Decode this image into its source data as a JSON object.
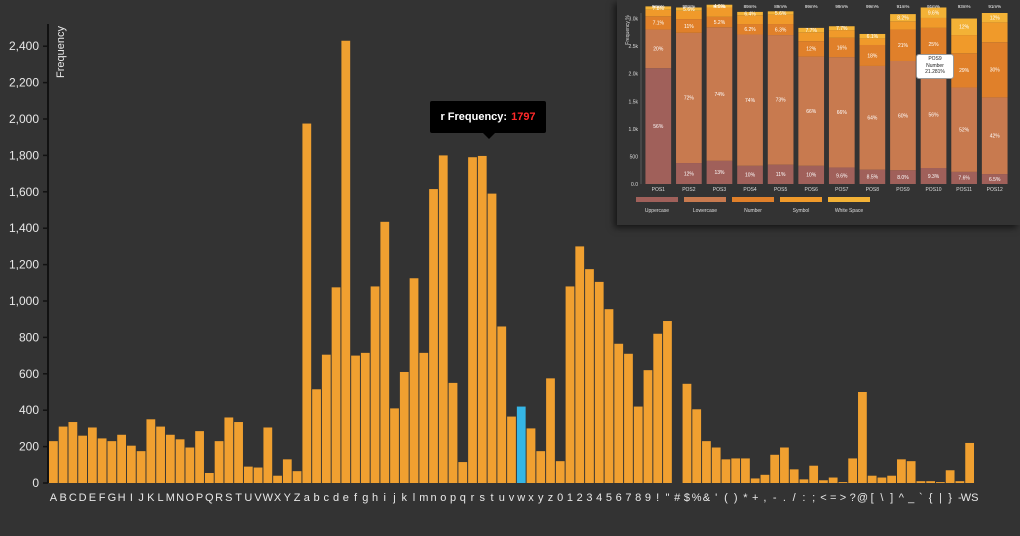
{
  "chart_data": [
    {
      "type": "bar",
      "ylabel": "Frequency",
      "ylim": [
        0,
        2500
      ],
      "yticks": [
        0,
        200,
        400,
        600,
        800,
        1000,
        1200,
        1400,
        1600,
        1800,
        2000,
        2200,
        2400
      ],
      "ytick_labels": [
        "0",
        "200",
        "400",
        "600",
        "800",
        "1,000",
        "1,200",
        "1,400",
        "1,600",
        "1,800",
        "2,000",
        "2,200",
        "2,400"
      ],
      "bar_color": "#f0a030",
      "highlight_color": "#35b6e6",
      "highlight_index": 48,
      "grid": false,
      "categories": [
        "A",
        "B",
        "C",
        "D",
        "E",
        "F",
        "G",
        "H",
        "I",
        "J",
        "K",
        "L",
        "M",
        "N",
        "O",
        "P",
        "Q",
        "R",
        "S",
        "T",
        "U",
        "V",
        "W",
        "X",
        "Y",
        "Z",
        "a",
        "b",
        "c",
        "d",
        "e",
        "f",
        "g",
        "h",
        "i",
        "j",
        "k",
        "l",
        "m",
        "n",
        "o",
        "p",
        "q",
        "r",
        "s",
        "t",
        "u",
        "v",
        "w",
        "x",
        "y",
        "z",
        "0",
        "1",
        "2",
        "3",
        "4",
        "5",
        "6",
        "7",
        "8",
        "9",
        "!",
        "\"",
        "#",
        "$",
        "%",
        "&",
        "'",
        "(",
        ")",
        "*",
        "+",
        ",",
        "-",
        ".",
        "/",
        ":",
        ";",
        "<",
        "=",
        ">",
        "?",
        "@",
        "[",
        "\\",
        "]",
        "^",
        "_",
        "`",
        "{",
        "|",
        "}",
        "-",
        "WS"
      ],
      "values": [
        230,
        310,
        335,
        260,
        305,
        245,
        230,
        265,
        205,
        175,
        350,
        310,
        265,
        240,
        195,
        285,
        55,
        230,
        360,
        335,
        90,
        85,
        305,
        40,
        130,
        65,
        1975,
        515,
        705,
        1075,
        2430,
        700,
        715,
        1080,
        1435,
        410,
        610,
        1125,
        715,
        1615,
        1800,
        550,
        115,
        1790,
        1797,
        1590,
        860,
        365,
        420,
        300,
        175,
        575,
        120,
        1080,
        1300,
        1175,
        1105,
        955,
        765,
        710,
        420,
        620,
        820,
        890,
        0,
        545,
        405,
        230,
        195,
        130,
        135,
        135,
        25,
        45,
        155,
        195,
        75,
        20,
        95,
        15,
        30,
        5,
        135,
        500,
        40,
        30,
        40,
        130,
        120,
        10,
        10,
        5,
        70,
        10,
        220
      ],
      "tooltip": {
        "label": "r Frequency:",
        "value": "1797"
      }
    },
    {
      "type": "bar",
      "stacked": true,
      "ylabel": "Frequency %",
      "categories": [
        "POS1",
        "POS2",
        "POS3",
        "POS4",
        "POS5",
        "POS6",
        "POS7",
        "POS8",
        "POS9",
        "POS10",
        "POS11",
        "POS12"
      ],
      "yticks": [
        0,
        500,
        1000,
        1500,
        2000,
        2500,
        3000
      ],
      "ytick_labels": [
        "0.0",
        "500",
        "1.0k",
        "1.5k",
        "2.0k",
        "2.5k",
        "3.0k"
      ],
      "ylim": [
        0,
        3100
      ],
      "top_labels": [
        "98m%",
        "98m%",
        "97m%",
        "89m%",
        "89m%",
        "99m%",
        "99m%",
        "99m%",
        "91m%",
        "91m%",
        "93m%",
        "91m%"
      ],
      "series": [
        {
          "name": "Uppercase",
          "color": "#a0605a",
          "values": [
            2100,
            380,
            420,
            330,
            350,
            330,
            300,
            260,
            250,
            290,
            220,
            180
          ],
          "labels": [
            "56%",
            "12%",
            "13%",
            "10%",
            "11%",
            "10%",
            "9.6%",
            "8.5%",
            "8.0%",
            "9.3%",
            "7.6%",
            "6.5%"
          ]
        },
        {
          "name": "Lowercase",
          "color": "#c87a4f",
          "values": [
            700,
            2360,
            2420,
            2380,
            2350,
            1980,
            2000,
            1880,
            1980,
            1940,
            1530,
            1390
          ],
          "labels": [
            "20%",
            "72%",
            "74%",
            "74%",
            "73%",
            "66%",
            "66%",
            "64%",
            "60%",
            "56%",
            "52%",
            "42%"
          ]
        },
        {
          "name": "Number",
          "color": "#e0802a",
          "values": [
            240,
            250,
            190,
            190,
            200,
            280,
            350,
            380,
            570,
            600,
            620,
            1000
          ],
          "labels": [
            "7.1%",
            "11%",
            "5.2%",
            "6.2%",
            "6.3%",
            "12%",
            "16%",
            "18%",
            "21%",
            "25%",
            "29%",
            "30%"
          ]
        },
        {
          "name": "Symbol",
          "color": "#f09a2a",
          "values": [
            120,
            150,
            170,
            160,
            170,
            160,
            140,
            120,
            150,
            180,
            330,
            360
          ],
          "labels": [
            "",
            "",
            "",
            "",
            "",
            "",
            "",
            "",
            "",
            "",
            "",
            ""
          ]
        },
        {
          "name": "White Space",
          "color": "#f3b236",
          "values": [
            60,
            60,
            50,
            60,
            60,
            80,
            70,
            80,
            130,
            190,
            300,
            170
          ],
          "labels": [
            "7.8%",
            "5.6%",
            "4.9%",
            "6.4%",
            "5.6%",
            "7.7%",
            "7.7%",
            "6.1%",
            "8.2%",
            "9.6%",
            "12%",
            "12%"
          ]
        }
      ],
      "legend": [
        "Uppercase",
        "Lowercase",
        "Number",
        "Symbol",
        "White Space"
      ],
      "legend_placement": "bottom",
      "tooltip": {
        "lines": [
          "POS9",
          "Number",
          "21.281%"
        ]
      }
    }
  ]
}
